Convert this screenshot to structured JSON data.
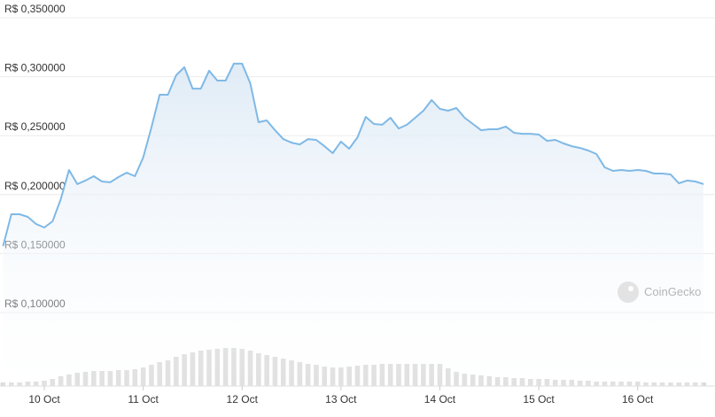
{
  "chart_data": {
    "type": "line",
    "series": [
      {
        "color": "#7fb9e6",
        "values": [
          0.1563,
          0.1833,
          0.1833,
          0.1811,
          0.1751,
          0.1721,
          0.1773,
          0.1961,
          0.2209,
          0.2089,
          0.2119,
          0.2156,
          0.2111,
          0.2104,
          0.2149,
          0.2186,
          0.2156,
          0.2314,
          0.2569,
          0.2847,
          0.2847,
          0.3012,
          0.308,
          0.2899,
          0.2899,
          0.305,
          0.2967,
          0.2967,
          0.311,
          0.311,
          0.2944,
          0.2614,
          0.2629,
          0.2546,
          0.2471,
          0.2441,
          0.2426,
          0.2471,
          0.2464,
          0.2411,
          0.2351,
          0.2449,
          0.2389,
          0.2486,
          0.2659,
          0.2599,
          0.2592,
          0.2652,
          0.2561,
          0.2592,
          0.2652,
          0.2712,
          0.2802,
          0.2727,
          0.2712,
          0.2734,
          0.2652,
          0.2599,
          0.2546,
          0.2554,
          0.2554,
          0.2577,
          0.2524,
          0.2516,
          0.2516,
          0.2509,
          0.2456,
          0.2464,
          0.2434,
          0.2411,
          0.2396,
          0.2374,
          0.2344,
          0.2231,
          0.2201,
          0.2209,
          0.2201,
          0.2209,
          0.2201,
          0.2179,
          0.2179,
          0.2171,
          0.2096,
          0.2119,
          0.2111,
          0.2089
        ]
      }
    ],
    "volume": {
      "color": "#d9d9d9",
      "lim": [
        0,
        50
      ],
      "values": [
        4,
        4,
        4,
        5,
        5,
        6,
        8,
        11,
        13,
        15,
        16,
        17,
        17,
        17,
        18,
        18,
        19,
        21,
        24,
        27,
        29,
        33,
        36,
        38,
        40,
        41,
        42,
        43,
        43,
        42,
        40,
        37,
        35,
        33,
        31,
        29,
        27,
        25,
        24,
        22,
        21,
        21,
        22,
        23,
        24,
        24,
        25,
        25,
        25,
        25,
        25,
        25,
        25,
        25,
        20,
        16,
        14,
        13,
        12,
        11,
        10,
        10,
        9,
        9,
        8,
        8,
        8,
        7,
        7,
        7,
        6,
        6,
        5,
        5,
        5,
        5,
        5,
        5,
        4,
        4,
        4,
        4,
        4,
        4,
        4,
        4
      ]
    },
    "xlim": [
      0,
      85
    ],
    "xticks": [
      {
        "value": 5,
        "label": "10 Oct"
      },
      {
        "value": 17,
        "label": "11 Oct"
      },
      {
        "value": 29,
        "label": "12 Oct"
      },
      {
        "value": 41,
        "label": "13 Oct"
      },
      {
        "value": 53,
        "label": "14 Oct"
      },
      {
        "value": 65,
        "label": "15 Oct"
      },
      {
        "value": 77,
        "label": "16 Oct"
      }
    ],
    "ylim": [
      0.1,
      0.35
    ],
    "yticks": [
      {
        "value": 0.1,
        "label": "R$ 0,100000"
      },
      {
        "value": 0.15,
        "label": "R$ 0,150000"
      },
      {
        "value": 0.2,
        "label": "R$ 0,200000"
      },
      {
        "value": 0.25,
        "label": "R$ 0,250000"
      },
      {
        "value": 0.3,
        "label": "R$ 0,300000"
      },
      {
        "value": 0.35,
        "label": "R$ 0,350000"
      }
    ],
    "grid": true,
    "watermark": "CoinGecko"
  }
}
